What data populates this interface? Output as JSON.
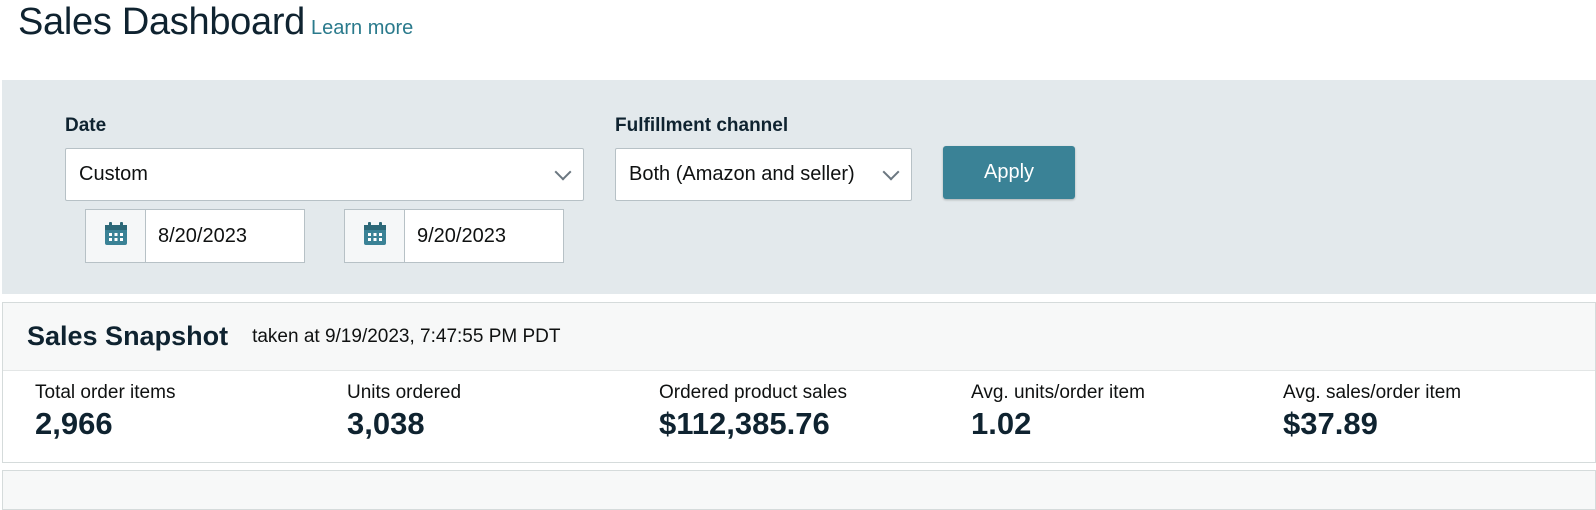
{
  "header": {
    "title": "Sales Dashboard",
    "learn_more": "Learn more"
  },
  "filters": {
    "date_label": "Date",
    "date_value": "Custom",
    "start_date": "8/20/2023",
    "end_date": "9/20/2023",
    "fulfillment_label": "Fulfillment channel",
    "fulfillment_value": "Both (Amazon and seller)",
    "apply_label": "Apply"
  },
  "snapshot": {
    "title": "Sales Snapshot",
    "taken_at": "taken at 9/19/2023, 7:47:55 PM PDT",
    "metrics": [
      {
        "label": "Total order items",
        "value": "2,966"
      },
      {
        "label": "Units ordered",
        "value": "3,038"
      },
      {
        "label": "Ordered product sales",
        "value": "$112,385.76"
      },
      {
        "label": "Avg. units/order item",
        "value": "1.02"
      },
      {
        "label": "Avg. sales/order item",
        "value": "$37.89"
      }
    ]
  },
  "icons": {
    "calendar": "calendar-icon",
    "chevron": "chevron-down-icon"
  },
  "colors": {
    "accent": "#3a8296",
    "link": "#2a7a8c",
    "filter_bg": "#e3e9ec",
    "heading": "#0f2330"
  }
}
